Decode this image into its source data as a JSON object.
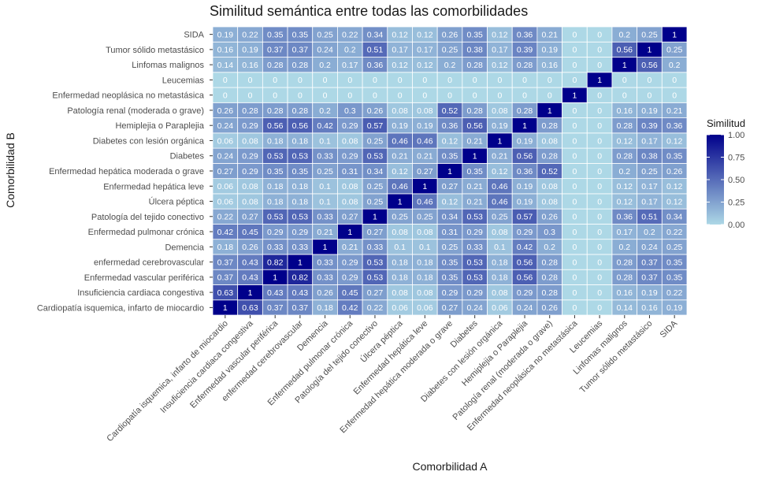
{
  "chart_data": {
    "type": "heatmap",
    "title": "Similitud semántica entre todas las comorbilidades",
    "xlabel": "Comorbilidad A",
    "ylabel": "Comorbilidad B",
    "legend_title": "Similitud",
    "legend_ticks": [
      "0.00",
      "0.25",
      "0.50",
      "0.75",
      "1.00"
    ],
    "color_low": "#add8e6",
    "color_high": "#00008b",
    "value_range": [
      0,
      1
    ],
    "categories": [
      "Cardiopatía isquemica, infarto de miocardio",
      "Insuficiencia cardiaca congestiva",
      "Enfermedad vascular periférica",
      "enfermedad cerebrovascular",
      "Demencia",
      "Enfermedad pulmonar crónica",
      "Patología del tejido conectivo",
      "Úlcera péptica",
      "Enfermedad hepática leve",
      "Enfermedad hepática moderada o grave",
      "Diabetes",
      "Diabetes con lesión orgánica",
      "Hemiplejia o Paraplejia",
      "Patología renal (moderada o grave)",
      "Enfermedad neoplásica no metastásica",
      "Leucemias",
      "Linfomas malignos",
      "Tumor sólido metastásico",
      "SIDA"
    ],
    "matrix": [
      [
        1,
        0.63,
        0.37,
        0.37,
        0.18,
        0.42,
        0.22,
        0.06,
        0.06,
        0.27,
        0.24,
        0.06,
        0.24,
        0.26,
        0,
        0,
        0.14,
        0.16,
        0.19
      ],
      [
        0.63,
        1,
        0.43,
        0.43,
        0.26,
        0.45,
        0.27,
        0.08,
        0.08,
        0.29,
        0.29,
        0.08,
        0.29,
        0.28,
        0,
        0,
        0.16,
        0.19,
        0.22
      ],
      [
        0.37,
        0.43,
        1,
        0.82,
        0.33,
        0.29,
        0.53,
        0.18,
        0.18,
        0.35,
        0.53,
        0.18,
        0.56,
        0.28,
        0,
        0,
        0.28,
        0.37,
        0.35
      ],
      [
        0.37,
        0.43,
        0.82,
        1,
        0.33,
        0.29,
        0.53,
        0.18,
        0.18,
        0.35,
        0.53,
        0.18,
        0.56,
        0.28,
        0,
        0,
        0.28,
        0.37,
        0.35
      ],
      [
        0.18,
        0.26,
        0.33,
        0.33,
        1,
        0.21,
        0.33,
        0.1,
        0.1,
        0.25,
        0.33,
        0.1,
        0.42,
        0.2,
        0,
        0,
        0.2,
        0.24,
        0.25
      ],
      [
        0.42,
        0.45,
        0.29,
        0.29,
        0.21,
        1,
        0.27,
        0.08,
        0.08,
        0.31,
        0.29,
        0.08,
        0.29,
        0.3,
        0,
        0,
        0.17,
        0.2,
        0.22
      ],
      [
        0.22,
        0.27,
        0.53,
        0.53,
        0.33,
        0.27,
        1,
        0.25,
        0.25,
        0.34,
        0.53,
        0.25,
        0.57,
        0.26,
        0,
        0,
        0.36,
        0.51,
        0.34
      ],
      [
        0.06,
        0.08,
        0.18,
        0.18,
        0.1,
        0.08,
        0.25,
        1,
        0.46,
        0.12,
        0.21,
        0.46,
        0.19,
        0.08,
        0,
        0,
        0.12,
        0.17,
        0.12
      ],
      [
        0.06,
        0.08,
        0.18,
        0.18,
        0.1,
        0.08,
        0.25,
        0.46,
        1,
        0.27,
        0.21,
        0.46,
        0.19,
        0.08,
        0,
        0,
        0.12,
        0.17,
        0.12
      ],
      [
        0.27,
        0.29,
        0.35,
        0.35,
        0.25,
        0.31,
        0.34,
        0.12,
        0.27,
        1,
        0.35,
        0.12,
        0.36,
        0.52,
        0,
        0,
        0.2,
        0.25,
        0.26
      ],
      [
        0.24,
        0.29,
        0.53,
        0.53,
        0.33,
        0.29,
        0.53,
        0.21,
        0.21,
        0.35,
        1,
        0.21,
        0.56,
        0.28,
        0,
        0,
        0.28,
        0.38,
        0.35
      ],
      [
        0.06,
        0.08,
        0.18,
        0.18,
        0.1,
        0.08,
        0.25,
        0.46,
        0.46,
        0.12,
        0.21,
        1,
        0.19,
        0.08,
        0,
        0,
        0.12,
        0.17,
        0.12
      ],
      [
        0.24,
        0.29,
        0.56,
        0.56,
        0.42,
        0.29,
        0.57,
        0.19,
        0.19,
        0.36,
        0.56,
        0.19,
        1,
        0.28,
        0,
        0,
        0.28,
        0.39,
        0.36
      ],
      [
        0.26,
        0.28,
        0.28,
        0.28,
        0.2,
        0.3,
        0.26,
        0.08,
        0.08,
        0.52,
        0.28,
        0.08,
        0.28,
        1,
        0,
        0,
        0.16,
        0.19,
        0.21
      ],
      [
        0,
        0,
        0,
        0,
        0,
        0,
        0,
        0,
        0,
        0,
        0,
        0,
        0,
        0,
        1,
        0,
        0,
        0,
        0
      ],
      [
        0,
        0,
        0,
        0,
        0,
        0,
        0,
        0,
        0,
        0,
        0,
        0,
        0,
        0,
        0,
        1,
        0,
        0,
        0
      ],
      [
        0.14,
        0.16,
        0.28,
        0.28,
        0.2,
        0.17,
        0.36,
        0.12,
        0.12,
        0.2,
        0.28,
        0.12,
        0.28,
        0.16,
        0,
        0,
        1,
        0.56,
        0.2
      ],
      [
        0.16,
        0.19,
        0.37,
        0.37,
        0.24,
        0.2,
        0.51,
        0.17,
        0.17,
        0.25,
        0.38,
        0.17,
        0.39,
        0.19,
        0,
        0,
        0.56,
        1,
        0.25
      ],
      [
        0.19,
        0.22,
        0.35,
        0.35,
        0.25,
        0.22,
        0.34,
        0.12,
        0.12,
        0.26,
        0.35,
        0.12,
        0.36,
        0.21,
        0,
        0,
        0.2,
        0.25,
        1
      ]
    ]
  }
}
